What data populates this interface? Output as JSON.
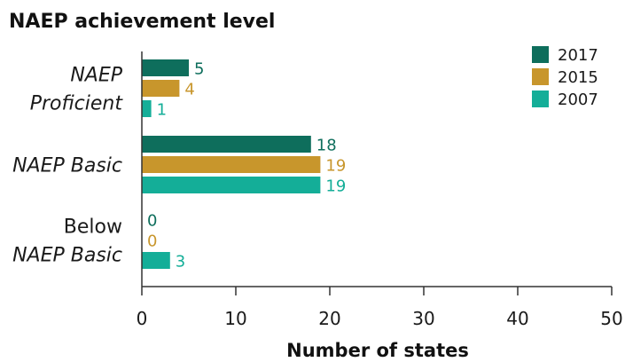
{
  "chart_data": {
    "type": "bar",
    "orientation": "horizontal",
    "title": "NAEP achievement level",
    "xlabel": "Number of states",
    "xlim": [
      0,
      50
    ],
    "xticks": [
      0,
      10,
      20,
      30,
      40,
      50
    ],
    "categories": [
      {
        "lines": [
          {
            "text": "NAEP",
            "italic": true
          },
          {
            "text": "Proficient",
            "italic": true
          }
        ]
      },
      {
        "lines": [
          {
            "text": "NAEP Basic",
            "italic": true
          }
        ]
      },
      {
        "lines": [
          {
            "text": "Below",
            "italic": false
          },
          {
            "text": "NAEP Basic",
            "italic": true
          }
        ]
      }
    ],
    "series": [
      {
        "name": "2017",
        "color": "#0e6e5c",
        "values": [
          5,
          18,
          0
        ]
      },
      {
        "name": "2015",
        "color": "#c8962c",
        "values": [
          4,
          19,
          0
        ]
      },
      {
        "name": "2007",
        "color": "#14ae98",
        "values": [
          1,
          19,
          3
        ]
      }
    ],
    "legend": "top-right",
    "grid": false
  }
}
